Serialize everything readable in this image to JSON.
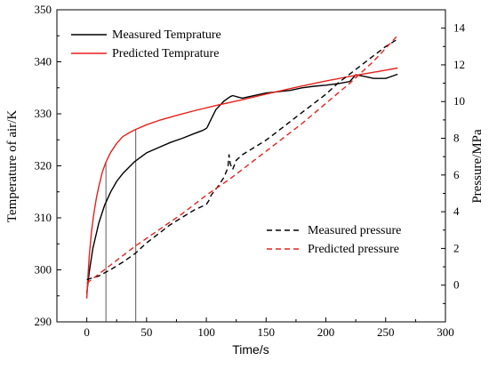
{
  "chart_data": {
    "type": "line",
    "xlabel": "Time/s",
    "ylabel_left": "Temperature of air/K",
    "ylabel_right": "Pressure/MPa",
    "xlim": [
      -25,
      300
    ],
    "ylim_left": [
      290,
      350
    ],
    "ylim_right": [
      -2,
      15
    ],
    "xticks": [
      0,
      50,
      100,
      150,
      200,
      250,
      300
    ],
    "yticks_left": [
      290,
      300,
      310,
      320,
      330,
      340,
      350
    ],
    "yticks_right": [
      0,
      2,
      4,
      6,
      8,
      10,
      12,
      14
    ],
    "grid": false,
    "markers": [
      {
        "x": 16,
        "label": ""
      },
      {
        "x": 41,
        "label": ""
      }
    ],
    "legends": [
      {
        "position": "top-left",
        "entries": [
          "Measured Temprature",
          "Predicted Temprature"
        ]
      },
      {
        "position": "bottom-right",
        "entries": [
          "Measured pressure",
          "Predicted pressure"
        ]
      }
    ],
    "series": [
      {
        "name": "Measured Temprature",
        "axis": "left",
        "color": "#000000",
        "dash": "solid",
        "x": [
          0,
          1,
          2,
          5,
          10,
          15,
          20,
          25,
          30,
          40,
          50,
          60,
          70,
          80,
          90,
          97,
          100,
          101,
          103,
          108,
          115,
          120,
          122,
          130,
          150,
          170,
          180,
          190,
          200,
          210,
          220,
          225,
          230,
          240,
          250,
          255,
          260
        ],
        "y": [
          295.5,
          297.5,
          299.5,
          304,
          309,
          312.5,
          315,
          317,
          318.5,
          320.8,
          322.5,
          323.5,
          324.5,
          325.3,
          326.2,
          326.8,
          327.2,
          327.5,
          328.5,
          330.8,
          332.5,
          333.3,
          333.5,
          333,
          334,
          334.5,
          335,
          335.3,
          335.5,
          335.8,
          336.2,
          337.5,
          337.3,
          336.8,
          336.8,
          337.2,
          337.6
        ]
      },
      {
        "name": "Predicted Temprature",
        "axis": "left",
        "color": "#e8201b",
        "dash": "solid",
        "x": [
          0,
          1,
          2,
          4,
          6,
          8,
          10,
          13,
          16,
          20,
          25,
          30,
          35,
          40,
          50,
          60,
          75,
          90,
          110,
          130,
          150,
          175,
          200,
          225,
          250,
          260
        ],
        "y": [
          294.5,
          299,
          302.5,
          307.5,
          311,
          313.8,
          316,
          318.8,
          320.7,
          322.6,
          324.3,
          325.6,
          326.3,
          326.9,
          327.9,
          328.7,
          329.7,
          330.6,
          331.7,
          332.7,
          333.8,
          335.1,
          336.3,
          337.4,
          338.4,
          338.8
        ]
      },
      {
        "name": "Measured pressure",
        "axis": "right",
        "color": "#000000",
        "dash": "dashed",
        "x": [
          0,
          10,
          20,
          30,
          40,
          50,
          60,
          70,
          80,
          90,
          100,
          102,
          104,
          110,
          115,
          118,
          119,
          120,
          122,
          125,
          130,
          140,
          150,
          160,
          170,
          180,
          190,
          200,
          210,
          220,
          230,
          240,
          250,
          255,
          260
        ],
        "y": [
          0.3,
          0.5,
          0.85,
          1.25,
          1.7,
          2.3,
          2.8,
          3.3,
          3.7,
          4.1,
          4.4,
          4.6,
          4.9,
          5.4,
          5.9,
          6.4,
          7.1,
          6.6,
          6.3,
          6.8,
          7.1,
          7.5,
          7.9,
          8.4,
          8.9,
          9.4,
          9.9,
          10.4,
          11.0,
          11.5,
          12.0,
          12.5,
          13.0,
          13.2,
          13.4
        ]
      },
      {
        "name": "Predicted pressure",
        "axis": "right",
        "color": "#e8201b",
        "dash": "dashed",
        "x": [
          0,
          20,
          40,
          60,
          80,
          100,
          120,
          140,
          160,
          180,
          200,
          220,
          240,
          260
        ],
        "y": [
          0.1,
          1.1,
          2.1,
          3.0,
          3.9,
          4.9,
          5.8,
          6.8,
          7.8,
          8.8,
          9.9,
          11.0,
          12.2,
          13.6
        ]
      }
    ]
  }
}
